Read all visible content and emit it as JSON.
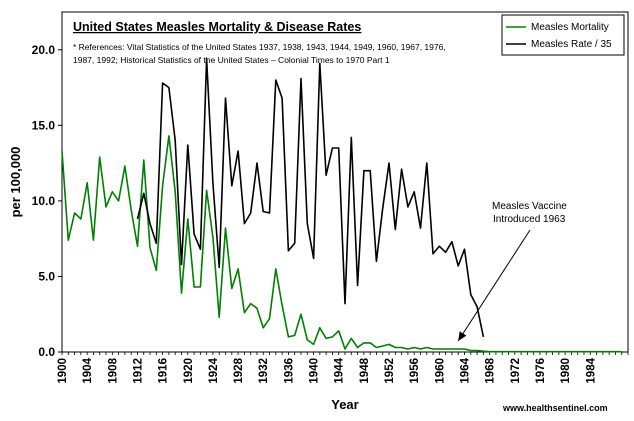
{
  "chart_data": {
    "type": "line",
    "title": "United States Measles Mortality & Disease Rates",
    "references": "* References: Vital Statistics of the United States 1937, 1938, 1943, 1944, 1949, 1960, 1967, 1976,",
    "references_line2": "1987, 1992; Historical Statistics of the United States – Colonial Times to 1970 Part 1",
    "xlabel": "Year",
    "ylabel": "per 100,000",
    "xlim": [
      1900,
      1990
    ],
    "ylim": [
      0,
      22.5
    ],
    "x_ticks": [
      "1900",
      "1904",
      "1908",
      "1912",
      "1916",
      "1920",
      "1924",
      "1928",
      "1932",
      "1936",
      "1940",
      "1944",
      "1948",
      "1952",
      "1956",
      "1960",
      "1964",
      "1968",
      "1972",
      "1976",
      "1980",
      "1984"
    ],
    "y_ticks": [
      "0.0",
      "5.0",
      "10.0",
      "15.0",
      "20.0"
    ],
    "grid": false,
    "legend_position": "top-right",
    "series": [
      {
        "name": "Measles Mortality",
        "color": "#008000",
        "points": [
          [
            1900,
            13.3
          ],
          [
            1901,
            7.4
          ],
          [
            1902,
            9.2
          ],
          [
            1903,
            8.8
          ],
          [
            1904,
            11.2
          ],
          [
            1905,
            7.4
          ],
          [
            1906,
            12.9
          ],
          [
            1907,
            9.6
          ],
          [
            1908,
            10.6
          ],
          [
            1909,
            10.0
          ],
          [
            1910,
            12.3
          ],
          [
            1911,
            9.4
          ],
          [
            1912,
            7.0
          ],
          [
            1913,
            12.7
          ],
          [
            1914,
            6.9
          ],
          [
            1915,
            5.4
          ],
          [
            1916,
            11.0
          ],
          [
            1917,
            14.3
          ],
          [
            1918,
            10.6
          ],
          [
            1919,
            3.9
          ],
          [
            1920,
            8.8
          ],
          [
            1921,
            4.3
          ],
          [
            1922,
            4.3
          ],
          [
            1923,
            10.7
          ],
          [
            1924,
            7.6
          ],
          [
            1925,
            2.3
          ],
          [
            1926,
            8.2
          ],
          [
            1927,
            4.2
          ],
          [
            1928,
            5.5
          ],
          [
            1929,
            2.6
          ],
          [
            1930,
            3.2
          ],
          [
            1931,
            2.9
          ],
          [
            1932,
            1.6
          ],
          [
            1933,
            2.2
          ],
          [
            1934,
            5.5
          ],
          [
            1935,
            3.1
          ],
          [
            1936,
            1.0
          ],
          [
            1937,
            1.1
          ],
          [
            1938,
            2.5
          ],
          [
            1939,
            0.8
          ],
          [
            1940,
            0.5
          ],
          [
            1941,
            1.6
          ],
          [
            1942,
            0.9
          ],
          [
            1943,
            1.0
          ],
          [
            1944,
            1.4
          ],
          [
            1945,
            0.2
          ],
          [
            1946,
            0.9
          ],
          [
            1947,
            0.3
          ],
          [
            1948,
            0.6
          ],
          [
            1949,
            0.6
          ],
          [
            1950,
            0.3
          ],
          [
            1951,
            0.4
          ],
          [
            1952,
            0.5
          ],
          [
            1953,
            0.3
          ],
          [
            1954,
            0.3
          ],
          [
            1955,
            0.2
          ],
          [
            1956,
            0.3
          ],
          [
            1957,
            0.2
          ],
          [
            1958,
            0.3
          ],
          [
            1959,
            0.2
          ],
          [
            1960,
            0.2
          ],
          [
            1961,
            0.2
          ],
          [
            1962,
            0.2
          ],
          [
            1963,
            0.2
          ],
          [
            1964,
            0.2
          ],
          [
            1965,
            0.1
          ],
          [
            1966,
            0.1
          ],
          [
            1967,
            0.05
          ],
          [
            1968,
            0.02
          ],
          [
            1969,
            0.02
          ],
          [
            1970,
            0.02
          ],
          [
            1971,
            0.02
          ],
          [
            1972,
            0.02
          ],
          [
            1973,
            0.02
          ],
          [
            1974,
            0.02
          ],
          [
            1975,
            0.02
          ],
          [
            1976,
            0.02
          ],
          [
            1977,
            0.02
          ],
          [
            1978,
            0.02
          ],
          [
            1979,
            0.02
          ],
          [
            1980,
            0.02
          ],
          [
            1981,
            0.02
          ],
          [
            1982,
            0.02
          ],
          [
            1983,
            0.02
          ],
          [
            1984,
            0.02
          ],
          [
            1985,
            0.02
          ],
          [
            1986,
            0.02
          ],
          [
            1987,
            0.02
          ],
          [
            1988,
            0.02
          ],
          [
            1989,
            0.02
          ]
        ]
      },
      {
        "name": "Measles Rate / 35",
        "color": "#000000",
        "points": [
          [
            1912,
            8.8
          ],
          [
            1913,
            10.5
          ],
          [
            1914,
            8.5
          ],
          [
            1915,
            7.2
          ],
          [
            1916,
            17.8
          ],
          [
            1917,
            17.5
          ],
          [
            1918,
            14.0
          ],
          [
            1919,
            5.8
          ],
          [
            1920,
            13.7
          ],
          [
            1921,
            7.8
          ],
          [
            1922,
            6.8
          ],
          [
            1923,
            19.4
          ],
          [
            1924,
            11.2
          ],
          [
            1925,
            5.6
          ],
          [
            1926,
            16.8
          ],
          [
            1927,
            11.0
          ],
          [
            1928,
            13.3
          ],
          [
            1929,
            8.5
          ],
          [
            1930,
            9.2
          ],
          [
            1931,
            12.5
          ],
          [
            1932,
            9.3
          ],
          [
            1933,
            9.2
          ],
          [
            1934,
            18.0
          ],
          [
            1935,
            16.8
          ],
          [
            1936,
            6.7
          ],
          [
            1937,
            7.2
          ],
          [
            1938,
            18.1
          ],
          [
            1939,
            8.5
          ],
          [
            1940,
            6.2
          ],
          [
            1941,
            19.1
          ],
          [
            1942,
            11.7
          ],
          [
            1943,
            13.5
          ],
          [
            1944,
            13.5
          ],
          [
            1945,
            3.2
          ],
          [
            1946,
            14.2
          ],
          [
            1947,
            4.4
          ],
          [
            1948,
            12.0
          ],
          [
            1949,
            12.0
          ],
          [
            1950,
            6.0
          ],
          [
            1951,
            9.5
          ],
          [
            1952,
            12.5
          ],
          [
            1953,
            8.1
          ],
          [
            1954,
            12.1
          ],
          [
            1955,
            9.6
          ],
          [
            1956,
            10.6
          ],
          [
            1957,
            8.2
          ],
          [
            1958,
            12.5
          ],
          [
            1959,
            6.5
          ],
          [
            1960,
            7.0
          ],
          [
            1961,
            6.6
          ],
          [
            1962,
            7.3
          ],
          [
            1963,
            5.7
          ],
          [
            1964,
            6.8
          ],
          [
            1965,
            3.8
          ],
          [
            1966,
            3.0
          ],
          [
            1967,
            1.0
          ]
        ]
      }
    ],
    "annotations": [
      {
        "line1": "Measles Vaccine",
        "line2": "Introduced 1963",
        "arrow_to": [
          1963,
          0.2
        ]
      }
    ]
  },
  "credit": "www.healthsentinel.com"
}
